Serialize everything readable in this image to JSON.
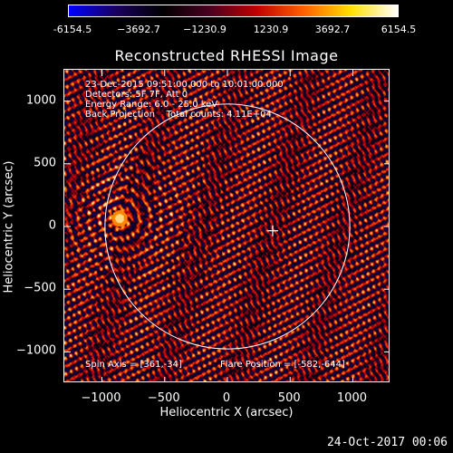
{
  "colorbar": {
    "tick_labels": [
      "-6154.5",
      "−3692.7",
      "−1230.9",
      "1230.9",
      "3692.7",
      "6154.5"
    ],
    "gradient_colors": [
      "#0000ff",
      "#1a0060",
      "#000000",
      "#4a0020",
      "#c00000",
      "#ff6000",
      "#ffe000",
      "#ffffff"
    ]
  },
  "title": "Reconstructed RHESSI Image",
  "info": {
    "line1": "23-Dec-2015 09:51:00.000 to 10:01:00.000",
    "line2": "Detectors: 5F 7F, Att 0",
    "line3": "Energy Range: 6.0 - 25.0 keV",
    "line4": "Back Projection    Total counts: 4.11E+04"
  },
  "footer": {
    "spin_axis": "Spin Axis = [361,-34]",
    "flare_position": "Flare Position = [-582,-644]"
  },
  "axes": {
    "x_title": "Heliocentric X (arcsec)",
    "y_title": "Heliocentric Y (arcsec)",
    "x_ticks": [
      {
        "label": "−1000",
        "value": -1000
      },
      {
        "label": "−500",
        "value": -500
      },
      {
        "label": "0",
        "value": 0
      },
      {
        "label": "500",
        "value": 500
      },
      {
        "label": "1000",
        "value": 1000
      }
    ],
    "y_ticks": [
      {
        "label": "1000",
        "value": 1000
      },
      {
        "label": "500",
        "value": 500
      },
      {
        "label": "0",
        "value": 0
      },
      {
        "label": "−500",
        "value": -500
      },
      {
        "label": "−1000",
        "value": -1000
      }
    ],
    "x_range": [
      -1300,
      1300
    ],
    "y_range": [
      -1250,
      1250
    ]
  },
  "solar_limb_radius_arcsec": 976,
  "bright_source_arcsec": [
    -860,
    60
  ],
  "marker_arcsec": [
    361,
    -34
  ],
  "timestamp": "24-Oct-2017 00:06"
}
